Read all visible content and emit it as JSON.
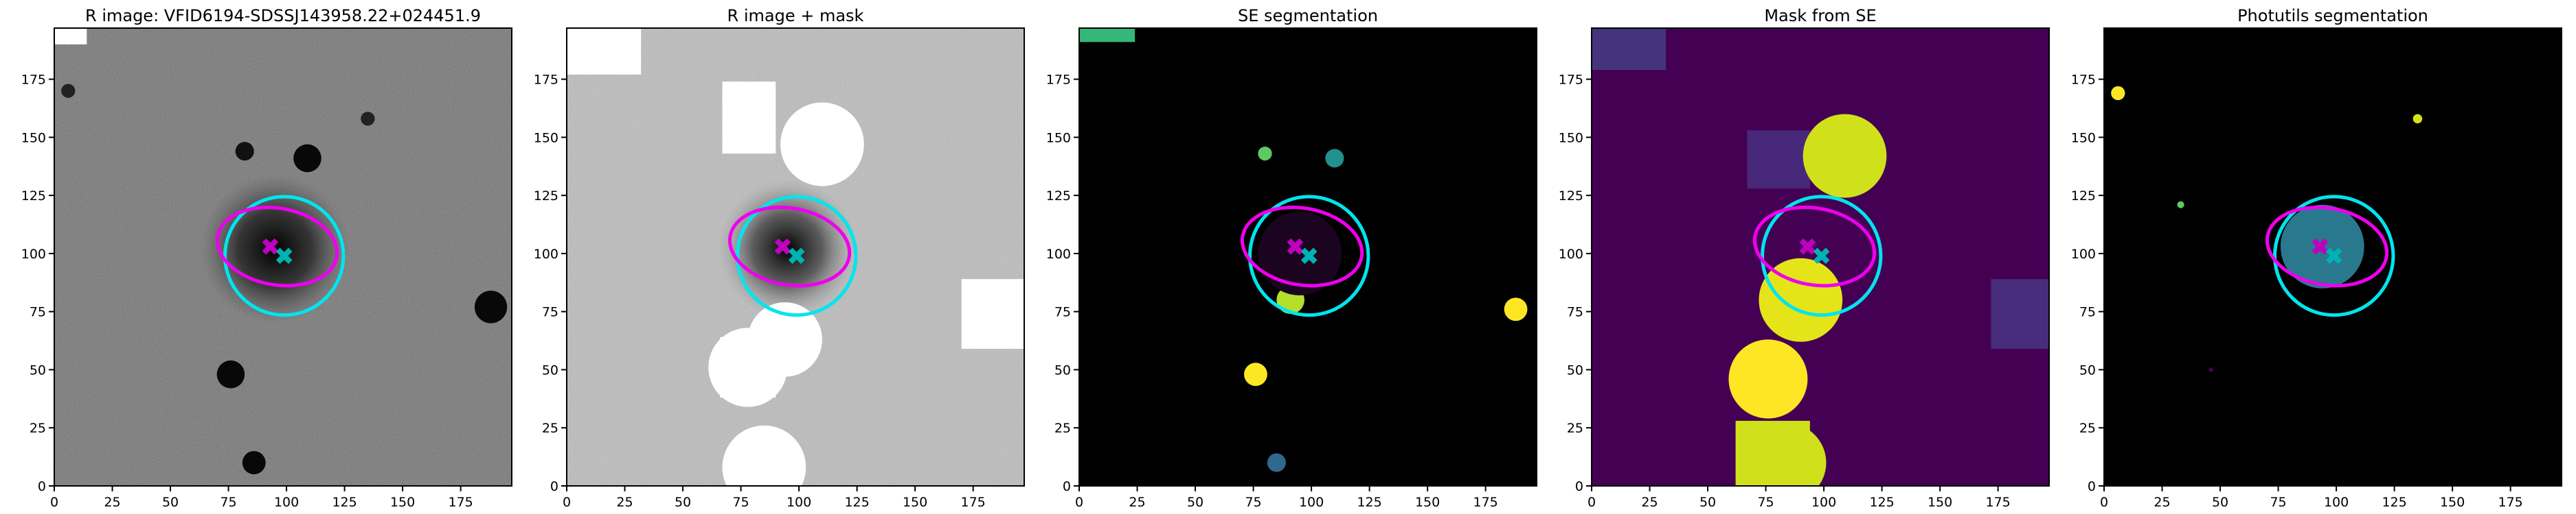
{
  "chart_data": [
    {
      "type": "image",
      "title": "R image: VFID6194-SDSSJ143958.22+024451.9",
      "xlim": [
        0,
        197
      ],
      "ylim": [
        0,
        197
      ],
      "xticks": [
        0,
        25,
        50,
        75,
        100,
        125,
        150,
        175
      ],
      "yticks": [
        0,
        25,
        50,
        75,
        100,
        125,
        150,
        175
      ],
      "markers": [
        {
          "color": "#bf00bf",
          "x": 93,
          "y": 103
        },
        {
          "color": "#00b3b3",
          "x": 99,
          "y": 99
        }
      ],
      "ellipses": [
        {
          "color": "#00e5ee",
          "x": 99,
          "y": 99,
          "width": 51,
          "height": 51,
          "angle": 0
        },
        {
          "color": "#ee00ee",
          "x": 96,
          "y": 103,
          "width": 52,
          "height": 33,
          "angle": -10
        }
      ]
    },
    {
      "type": "image",
      "title": "R image + mask",
      "xlim": [
        0,
        197
      ],
      "ylim": [
        0,
        197
      ],
      "xticks": [
        0,
        25,
        50,
        75,
        100,
        125,
        150,
        175
      ],
      "yticks": [
        0,
        25,
        50,
        75,
        100,
        125,
        150,
        175
      ],
      "markers": [
        {
          "color": "#bf00bf",
          "x": 93,
          "y": 103
        },
        {
          "color": "#00b3b3",
          "x": 99,
          "y": 99
        }
      ],
      "ellipses": [
        {
          "color": "#00e5ee",
          "x": 99,
          "y": 99,
          "width": 51,
          "height": 51,
          "angle": 0
        },
        {
          "color": "#ee00ee",
          "x": 96,
          "y": 103,
          "width": 52,
          "height": 33,
          "angle": -10
        }
      ]
    },
    {
      "type": "image",
      "title": "SE segmentation",
      "xlim": [
        0,
        197
      ],
      "ylim": [
        0,
        197
      ],
      "xticks": [
        0,
        25,
        50,
        75,
        100,
        125,
        150,
        175
      ],
      "yticks": [
        0,
        25,
        50,
        75,
        100,
        125,
        150,
        175
      ],
      "markers": [
        {
          "color": "#bf00bf",
          "x": 93,
          "y": 103
        },
        {
          "color": "#00b3b3",
          "x": 99,
          "y": 99
        }
      ],
      "ellipses": [
        {
          "color": "#00e5ee",
          "x": 99,
          "y": 99,
          "width": 51,
          "height": 51,
          "angle": 0
        },
        {
          "color": "#ee00ee",
          "x": 96,
          "y": 103,
          "width": 52,
          "height": 33,
          "angle": -10
        }
      ]
    },
    {
      "type": "image",
      "title": "Mask from SE",
      "xlim": [
        0,
        197
      ],
      "ylim": [
        0,
        197
      ],
      "xticks": [
        0,
        25,
        50,
        75,
        100,
        125,
        150,
        175
      ],
      "yticks": [
        0,
        25,
        50,
        75,
        100,
        125,
        150,
        175
      ],
      "markers": [
        {
          "color": "#bf00bf",
          "x": 93,
          "y": 103
        },
        {
          "color": "#00b3b3",
          "x": 99,
          "y": 99
        }
      ],
      "ellipses": [
        {
          "color": "#00e5ee",
          "x": 99,
          "y": 99,
          "width": 51,
          "height": 51,
          "angle": 0
        },
        {
          "color": "#ee00ee",
          "x": 96,
          "y": 103,
          "width": 52,
          "height": 33,
          "angle": -10
        }
      ]
    },
    {
      "type": "image",
      "title": "Photutils segmentation",
      "xlim": [
        0,
        197
      ],
      "ylim": [
        0,
        197
      ],
      "xticks": [
        0,
        25,
        50,
        75,
        100,
        125,
        150,
        175
      ],
      "yticks": [
        0,
        25,
        50,
        75,
        100,
        125,
        150,
        175
      ],
      "markers": [
        {
          "color": "#bf00bf",
          "x": 93,
          "y": 103
        },
        {
          "color": "#00b3b3",
          "x": 99,
          "y": 99
        }
      ],
      "ellipses": [
        {
          "color": "#00e5ee",
          "x": 99,
          "y": 99,
          "width": 51,
          "height": 51,
          "angle": 0
        },
        {
          "color": "#ee00ee",
          "x": 96,
          "y": 103,
          "width": 52,
          "height": 33,
          "angle": -10
        }
      ]
    }
  ]
}
